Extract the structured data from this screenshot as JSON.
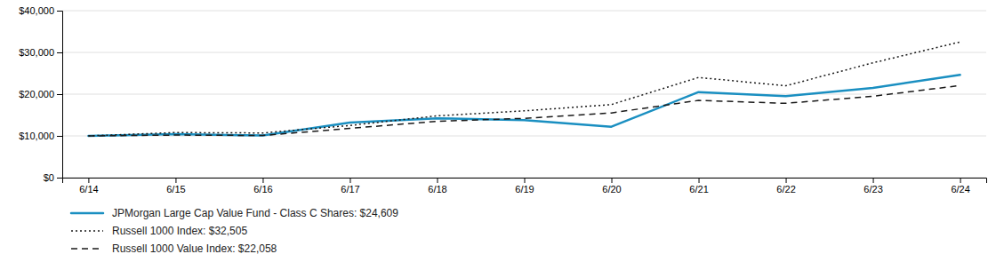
{
  "chart_data": {
    "type": "line",
    "categories": [
      "6/14",
      "6/15",
      "6/16",
      "6/17",
      "6/18",
      "6/19",
      "6/20",
      "6/21",
      "6/22",
      "6/23",
      "6/24"
    ],
    "series": [
      {
        "name": "JPMorgan Large Cap Value Fund - Class C Shares: $24,609",
        "color": "#1a8fc1",
        "line_style": "solid",
        "values": [
          10000,
          10400,
          10100,
          13200,
          14200,
          13800,
          12200,
          20500,
          19500,
          21500,
          24609
        ]
      },
      {
        "name": "Russell 1000 Index: $32,505",
        "color": "#1a1a1a",
        "line_style": "dotted",
        "values": [
          10000,
          10800,
          10700,
          12500,
          14800,
          16000,
          17500,
          24000,
          22000,
          27500,
          32505
        ]
      },
      {
        "name": "Russell 1000 Value Index: $22,058",
        "color": "#1a1a1a",
        "line_style": "dashed",
        "values": [
          10000,
          10200,
          10100,
          11800,
          13500,
          14200,
          15500,
          18500,
          17800,
          19500,
          22058
        ]
      }
    ],
    "ylim": [
      0,
      40000
    ],
    "yticks": [
      {
        "value": 0,
        "label": "$0"
      },
      {
        "value": 10000,
        "label": "$10,000"
      },
      {
        "value": 20000,
        "label": "$20,000"
      },
      {
        "value": 30000,
        "label": "$30,000"
      },
      {
        "value": 40000,
        "label": "$40,000"
      }
    ],
    "grid": true,
    "legend": "bottom"
  }
}
